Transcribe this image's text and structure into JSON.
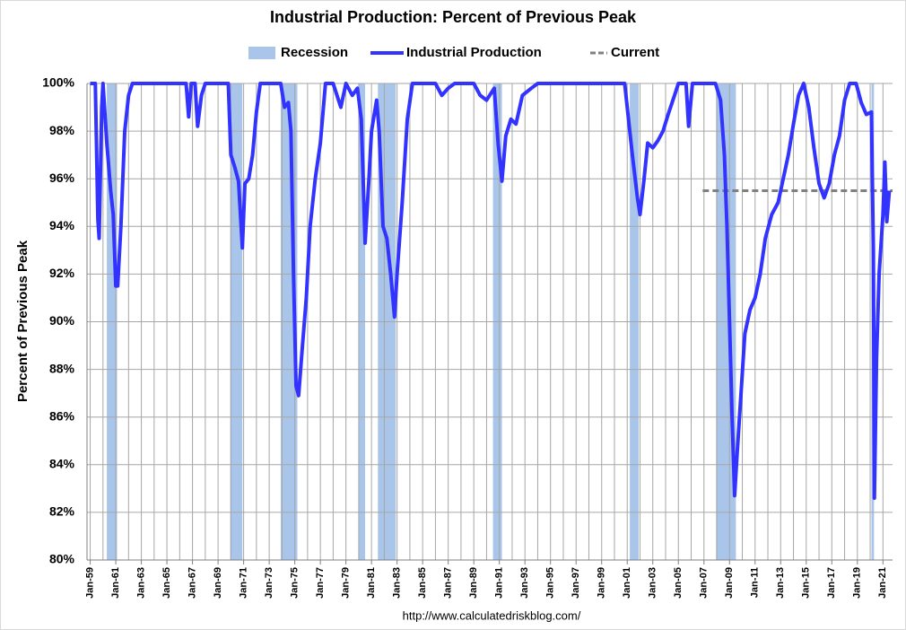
{
  "chart_data": {
    "type": "line",
    "title": "Industrial Production: Percent of Previous Peak",
    "y_label": "Percent of Previous Peak",
    "source": "http://www.calculatedriskblog.com/",
    "xlim": [
      1958.75,
      2021.75
    ],
    "ylim": [
      80,
      100
    ],
    "yticks": [
      {
        "value": 80,
        "label": "80%"
      },
      {
        "value": 82,
        "label": "82%"
      },
      {
        "value": 84,
        "label": "84%"
      },
      {
        "value": 86,
        "label": "86%"
      },
      {
        "value": 88,
        "label": "88%"
      },
      {
        "value": 90,
        "label": "90%"
      },
      {
        "value": 92,
        "label": "92%"
      },
      {
        "value": 94,
        "label": "94%"
      },
      {
        "value": 96,
        "label": "96%"
      },
      {
        "value": 98,
        "label": "98%"
      },
      {
        "value": 100,
        "label": "100%"
      }
    ],
    "xticks": [
      {
        "value": 1959,
        "label": "Jan-59"
      },
      {
        "value": 1961,
        "label": "Jan-61"
      },
      {
        "value": 1963,
        "label": "Jan-63"
      },
      {
        "value": 1965,
        "label": "Jan-65"
      },
      {
        "value": 1967,
        "label": "Jan-67"
      },
      {
        "value": 1969,
        "label": "Jan-69"
      },
      {
        "value": 1971,
        "label": "Jan-71"
      },
      {
        "value": 1973,
        "label": "Jan-73"
      },
      {
        "value": 1975,
        "label": "Jan-75"
      },
      {
        "value": 1977,
        "label": "Jan-77"
      },
      {
        "value": 1979,
        "label": "Jan-79"
      },
      {
        "value": 1981,
        "label": "Jan-81"
      },
      {
        "value": 1983,
        "label": "Jan-83"
      },
      {
        "value": 1985,
        "label": "Jan-85"
      },
      {
        "value": 1987,
        "label": "Jan-87"
      },
      {
        "value": 1989,
        "label": "Jan-89"
      },
      {
        "value": 1991,
        "label": "Jan-91"
      },
      {
        "value": 1993,
        "label": "Jan-93"
      },
      {
        "value": 1995,
        "label": "Jan-95"
      },
      {
        "value": 1997,
        "label": "Jan-97"
      },
      {
        "value": 1999,
        "label": "Jan-99"
      },
      {
        "value": 2001,
        "label": "Jan-01"
      },
      {
        "value": 2003,
        "label": "Jan-03"
      },
      {
        "value": 2005,
        "label": "Jan-05"
      },
      {
        "value": 2007,
        "label": "Jan-07"
      },
      {
        "value": 2009,
        "label": "Jan-09"
      },
      {
        "value": 2011,
        "label": "Jan-11"
      },
      {
        "value": 2013,
        "label": "Jan-13"
      },
      {
        "value": 2015,
        "label": "Jan-15"
      },
      {
        "value": 2017,
        "label": "Jan-17"
      },
      {
        "value": 2019,
        "label": "Jan-19"
      },
      {
        "value": 2021,
        "label": "Jan-21"
      }
    ],
    "xminor": [
      1960,
      1962,
      1964,
      1966,
      1968,
      1970,
      1972,
      1974,
      1976,
      1978,
      1980,
      1982,
      1984,
      1986,
      1988,
      1990,
      1992,
      1994,
      1996,
      1998,
      2000,
      2002,
      2004,
      2006,
      2008,
      2010,
      2012,
      2014,
      2016,
      2018,
      2020
    ],
    "grid": true,
    "recessions": {
      "name": "Recession",
      "color": "#a9c5ea",
      "spans": [
        [
          1960.3,
          1961.1
        ],
        [
          1969.95,
          1970.9
        ],
        [
          1973.9,
          1975.2
        ],
        [
          1980.0,
          1980.5
        ],
        [
          1981.5,
          1982.9
        ],
        [
          1990.5,
          1991.2
        ],
        [
          2001.2,
          2001.9
        ],
        [
          2007.95,
          2009.5
        ],
        [
          2020.1,
          2020.3
        ]
      ]
    },
    "current": {
      "name": "Current",
      "color": "#808080",
      "value": 95.5,
      "x_start": 2006.9
    },
    "x": [
      1959.0,
      1959.4,
      1959.6,
      1959.7,
      1959.9,
      1960.0,
      1960.3,
      1960.6,
      1960.8,
      1961.0,
      1961.15,
      1961.4,
      1961.7,
      1962.0,
      1962.3,
      1963.0,
      1964.0,
      1965.0,
      1966.0,
      1966.5,
      1966.7,
      1966.9,
      1967.2,
      1967.4,
      1967.7,
      1968.0,
      1969.0,
      1969.8,
      1970.0,
      1970.3,
      1970.6,
      1970.9,
      1971.1,
      1971.4,
      1971.7,
      1972.0,
      1972.3,
      1973.0,
      1973.9,
      1974.2,
      1974.5,
      1974.7,
      1974.9,
      1975.1,
      1975.3,
      1975.6,
      1975.9,
      1976.2,
      1976.6,
      1977.0,
      1977.4,
      1978.0,
      1978.6,
      1979.0,
      1979.5,
      1979.9,
      1980.2,
      1980.5,
      1980.8,
      1981.0,
      1981.4,
      1981.6,
      1981.9,
      1982.2,
      1982.5,
      1982.8,
      1983.0,
      1983.4,
      1983.8,
      1984.2,
      1986.0,
      1986.5,
      1987.0,
      1987.5,
      1989.0,
      1989.5,
      1990.0,
      1990.6,
      1990.9,
      1991.2,
      1991.5,
      1991.9,
      1992.3,
      1992.8,
      1993.5,
      1994.0,
      2000.8,
      2001.0,
      2001.4,
      2001.8,
      2002.0,
      2002.3,
      2002.6,
      2003.0,
      2003.4,
      2003.8,
      2004.2,
      2004.7,
      2005.0,
      2005.6,
      2005.8,
      2006.1,
      2007.9,
      2008.3,
      2008.6,
      2008.8,
      2009.0,
      2009.2,
      2009.4,
      2009.6,
      2009.9,
      2010.2,
      2010.6,
      2011.0,
      2011.4,
      2011.8,
      2012.3,
      2012.8,
      2013.2,
      2013.6,
      2014.0,
      2014.4,
      2014.8,
      2015.2,
      2015.6,
      2016.0,
      2016.4,
      2016.8,
      2017.2,
      2017.6,
      2018.0,
      2018.4,
      2018.9,
      2019.3,
      2019.7,
      2020.1,
      2020.25,
      2020.33,
      2020.5,
      2020.7,
      2021.0,
      2021.15,
      2021.3,
      2021.5
    ],
    "series": [
      {
        "name": "Industrial Production",
        "color": "#3333ff",
        "values": [
          100,
          100,
          94.3,
          93.5,
          99,
          100,
          97.5,
          95.5,
          94.5,
          91.5,
          91.5,
          94,
          98,
          99.5,
          100,
          100,
          100,
          100,
          100,
          100,
          98.6,
          100,
          100,
          98.2,
          99.5,
          100,
          100,
          100,
          97,
          96.5,
          95.9,
          93.1,
          95.8,
          96,
          97,
          98.8,
          100,
          100,
          100,
          99,
          99.2,
          98,
          92,
          87.3,
          86.9,
          89,
          91,
          94,
          96,
          97.5,
          100,
          100,
          99,
          100,
          99.5,
          99.8,
          98.5,
          93.3,
          96,
          98,
          99.3,
          98,
          94,
          93.5,
          92,
          90.2,
          92,
          95,
          98.5,
          100,
          100,
          99.5,
          99.8,
          100,
          100,
          99.5,
          99.3,
          99.8,
          97.5,
          95.9,
          97.8,
          98.5,
          98.3,
          99.5,
          99.8,
          100,
          100,
          99,
          97,
          95.2,
          94.5,
          95.9,
          97.5,
          97.3,
          97.6,
          98,
          98.7,
          99.5,
          100,
          100,
          98.2,
          100,
          100,
          99.3,
          97,
          94,
          90,
          86,
          82.7,
          84.5,
          87,
          89.5,
          90.5,
          91,
          92,
          93.5,
          94.5,
          95,
          96,
          97,
          98.3,
          99.5,
          100,
          99,
          97.3,
          95.8,
          95.2,
          95.8,
          97,
          97.8,
          99.3,
          100,
          100,
          99.2,
          98.7,
          98.8,
          93,
          82.6,
          88.5,
          92,
          94.5,
          96.7,
          94.2,
          95.5
        ]
      }
    ]
  }
}
